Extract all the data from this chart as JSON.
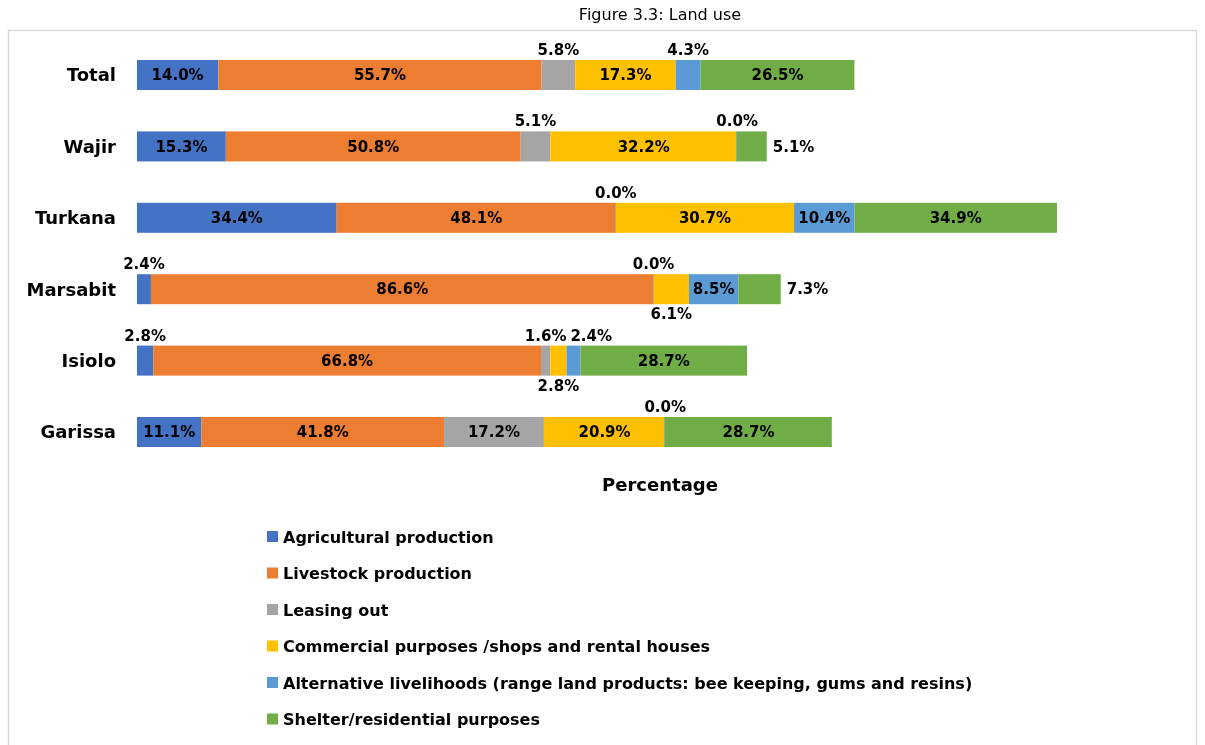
{
  "chart_data": {
    "type": "bar",
    "orientation": "horizontal",
    "stacked": true,
    "title": "Figure 3.3: Land use",
    "xlabel": "Percentage",
    "categories": [
      "Total",
      "Wajir",
      "Turkana",
      "Marsabit",
      "Isiolo",
      "Garissa"
    ],
    "series": [
      {
        "name": "Agricultural production",
        "color": "#4472c4",
        "values": [
          14.0,
          15.3,
          34.4,
          2.4,
          2.8,
          11.1
        ],
        "value_labels": [
          "14.0%",
          "15.3%",
          "34.4%",
          "2.4%",
          "2.8%",
          "11.1%"
        ]
      },
      {
        "name": "Livestock production",
        "color": "#ed7d31",
        "values": [
          55.7,
          50.8,
          48.1,
          86.6,
          66.8,
          41.8
        ],
        "value_labels": [
          "55.7%",
          "50.8%",
          "48.1%",
          "86.6%",
          "66.8%",
          "41.8%"
        ]
      },
      {
        "name": "Leasing out",
        "color": "#a5a5a5",
        "values": [
          5.8,
          5.1,
          0.0,
          0.0,
          1.6,
          17.2
        ],
        "value_labels": [
          "5.8%",
          "5.1%",
          "0.0%",
          "0.0%",
          "1.6%",
          "17.2%"
        ]
      },
      {
        "name": "Commercial purposes /shops and rental houses",
        "color": "#ffc000",
        "values": [
          17.3,
          32.2,
          30.7,
          6.1,
          2.8,
          20.9
        ],
        "value_labels": [
          "17.3%",
          "32.2%",
          "30.7%",
          "6.1%",
          "2.8%",
          "20.9%"
        ]
      },
      {
        "name": "Alternative livelihoods (range land products: bee keeping, gums and resins)",
        "color": "#5b9bd5",
        "values": [
          4.3,
          0.0,
          10.4,
          8.5,
          2.4,
          0.0
        ],
        "value_labels": [
          "4.3%",
          "0.0%",
          "10.4%",
          "8.5%",
          "2.4%",
          "0.0%"
        ]
      },
      {
        "name": "Shelter/residential purposes",
        "color": "#70ad47",
        "values": [
          26.5,
          5.1,
          34.9,
          7.3,
          28.7,
          28.7
        ],
        "value_labels": [
          "26.5%",
          "5.1%",
          "34.9%",
          "7.3%",
          "28.7%",
          "28.7%"
        ]
      }
    ],
    "legend": "bottom"
  }
}
